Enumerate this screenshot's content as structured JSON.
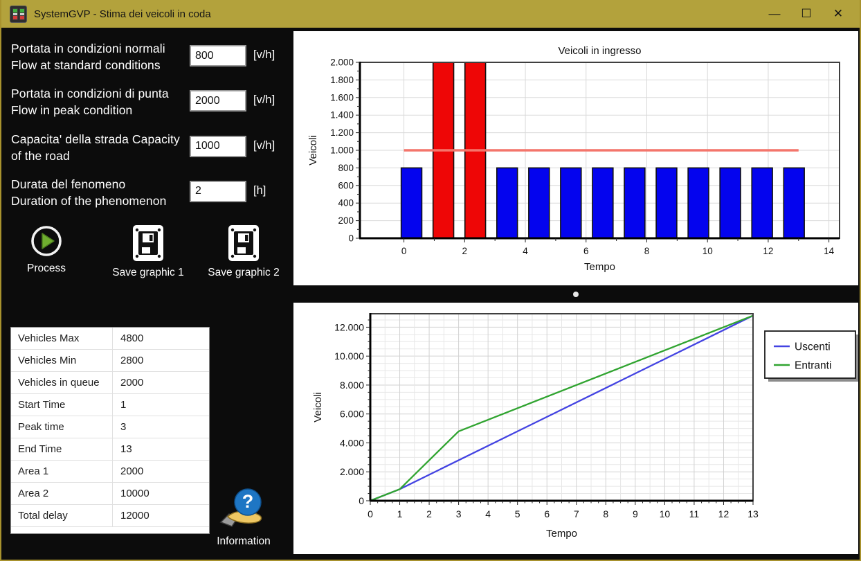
{
  "window": {
    "title": "SystemGVP - Stima dei veicoli in coda",
    "controls": {
      "minimize": "—",
      "maximize": "☐",
      "close": "✕"
    }
  },
  "inputs": [
    {
      "line1": "Portata in condizioni normali",
      "line2": "Flow at standard conditions",
      "value": "800",
      "unit": "[v/h]"
    },
    {
      "line1": "Portata in condizioni di punta",
      "line2": "Flow in peak condition",
      "value": "2000",
      "unit": "[v/h]"
    },
    {
      "line1": "Capacita' della strada Capacity",
      "line2": "of the road",
      "value": "1000",
      "unit": "[v/h]"
    },
    {
      "line1": "Durata del fenomeno",
      "line2": "Duration of the phenomenon",
      "value": "2",
      "unit": "[h]"
    }
  ],
  "buttons": {
    "process": "Process",
    "save1": "Save graphic 1",
    "save2": "Save graphic 2"
  },
  "results_table": {
    "rows": [
      {
        "key": "Vehicles Max",
        "value": "4800"
      },
      {
        "key": "Vehicles Min",
        "value": "2800"
      },
      {
        "key": "Vehicles in queue",
        "value": "2000"
      },
      {
        "key": "Start Time",
        "value": "1"
      },
      {
        "key": "Peak time",
        "value": "3"
      },
      {
        "key": "End Time",
        "value": "13"
      },
      {
        "key": "Area 1",
        "value": "2000"
      },
      {
        "key": "Area 2",
        "value": "10000"
      },
      {
        "key": "Total delay",
        "value": "12000"
      }
    ]
  },
  "information": {
    "label": "Information"
  },
  "chart_data": [
    {
      "type": "bar",
      "title": "Veicoli in ingresso",
      "xlabel": "Tempo",
      "ylabel": "Veicoli",
      "x": [
        0,
        1,
        2,
        3,
        4,
        5,
        6,
        7,
        8,
        9,
        10,
        11,
        12
      ],
      "values": [
        800,
        2000,
        2000,
        800,
        800,
        800,
        800,
        800,
        800,
        800,
        800,
        800,
        800
      ],
      "peak_indices": [
        1,
        2
      ],
      "bar_color": "#0404ee",
      "peak_color": "#ee0606",
      "capacity_line": {
        "y": 1000,
        "x_start": 0,
        "x_end": 13,
        "color": "#f4756b"
      },
      "ylim": [
        0,
        2000
      ],
      "ytick_step": 200,
      "xticks_labeled": [
        0,
        2,
        4,
        6,
        8,
        10,
        12,
        14
      ],
      "xlim": [
        -1.45,
        14.35
      ],
      "grid": true
    },
    {
      "type": "line",
      "title": "",
      "xlabel": "Tempo",
      "ylabel": "Veicoli",
      "series": [
        {
          "name": "Uscenti",
          "color": "#4343e2",
          "points": [
            [
              0,
              0
            ],
            [
              1,
              800
            ],
            [
              13,
              12800
            ]
          ]
        },
        {
          "name": "Entranti",
          "color": "#30a430",
          "points": [
            [
              0,
              0
            ],
            [
              1,
              800
            ],
            [
              3,
              4800
            ],
            [
              13,
              12800
            ]
          ]
        }
      ],
      "xlim": [
        0,
        13
      ],
      "ylim": [
        0,
        12930
      ],
      "ytick_step": 2000,
      "xticks_labeled": [
        0,
        1,
        2,
        3,
        4,
        5,
        6,
        7,
        8,
        9,
        10,
        11,
        12,
        13
      ],
      "legend_position": "right",
      "grid": true
    }
  ]
}
